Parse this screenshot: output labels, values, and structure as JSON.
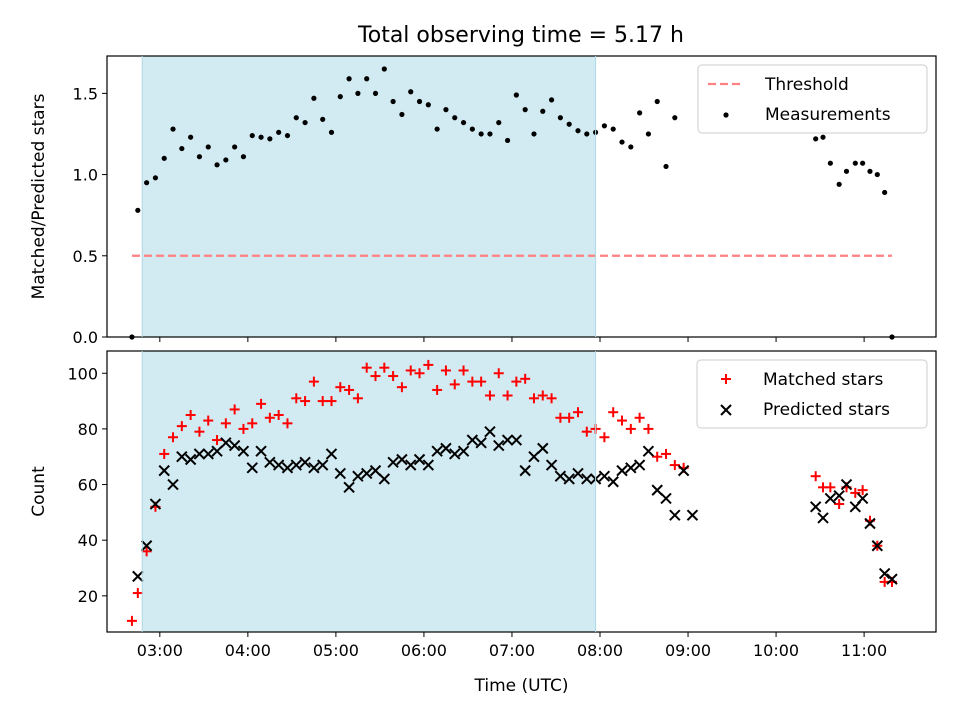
{
  "figure": {
    "title": "Total observing time = 5.17 h"
  },
  "chart_data": [
    {
      "type": "scatter",
      "ylabel": "Matched/Predicted stars",
      "xlabel": "",
      "xlim": [
        "02:24",
        "11:49"
      ],
      "ylim": [
        0,
        1.73
      ],
      "yticks": [
        0.0,
        0.5,
        1.0,
        1.5
      ],
      "ytick_labels": [
        "0.0",
        "0.5",
        "1.0",
        "1.5"
      ],
      "xtick_labels": [],
      "shaded_span": [
        "02:48",
        "07:57"
      ],
      "shaded_color": "#add8e6",
      "legend_position": "upper right",
      "threshold": {
        "name": "Threshold",
        "value": 0.5,
        "x_range": [
          "02:41",
          "11:19"
        ],
        "color": "#ff8080",
        "style": "dashed"
      },
      "series": [
        {
          "name": "Measurements",
          "marker": "dot",
          "color": "#000000",
          "points": [
            [
              "02:41",
              0.0
            ],
            [
              "02:45",
              0.78
            ],
            [
              "02:51",
              0.95
            ],
            [
              "02:57",
              0.98
            ],
            [
              "03:03",
              1.1
            ],
            [
              "03:09",
              1.28
            ],
            [
              "03:15",
              1.16
            ],
            [
              "03:21",
              1.23
            ],
            [
              "03:27",
              1.11
            ],
            [
              "03:33",
              1.17
            ],
            [
              "03:39",
              1.06
            ],
            [
              "03:45",
              1.09
            ],
            [
              "03:51",
              1.17
            ],
            [
              "03:57",
              1.11
            ],
            [
              "04:03",
              1.24
            ],
            [
              "04:09",
              1.23
            ],
            [
              "04:15",
              1.22
            ],
            [
              "04:21",
              1.26
            ],
            [
              "04:27",
              1.24
            ],
            [
              "04:33",
              1.35
            ],
            [
              "04:39",
              1.32
            ],
            [
              "04:45",
              1.47
            ],
            [
              "04:51",
              1.34
            ],
            [
              "04:57",
              1.26
            ],
            [
              "05:03",
              1.48
            ],
            [
              "05:09",
              1.59
            ],
            [
              "05:15",
              1.5
            ],
            [
              "05:21",
              1.59
            ],
            [
              "05:27",
              1.5
            ],
            [
              "05:33",
              1.65
            ],
            [
              "05:39",
              1.45
            ],
            [
              "05:45",
              1.37
            ],
            [
              "05:51",
              1.51
            ],
            [
              "05:57",
              1.45
            ],
            [
              "06:03",
              1.43
            ],
            [
              "06:09",
              1.28
            ],
            [
              "06:15",
              1.4
            ],
            [
              "06:21",
              1.35
            ],
            [
              "06:27",
              1.32
            ],
            [
              "06:33",
              1.28
            ],
            [
              "06:39",
              1.25
            ],
            [
              "06:45",
              1.25
            ],
            [
              "06:51",
              1.32
            ],
            [
              "06:57",
              1.21
            ],
            [
              "07:03",
              1.49
            ],
            [
              "07:09",
              1.4
            ],
            [
              "07:15",
              1.25
            ],
            [
              "07:21",
              1.39
            ],
            [
              "07:27",
              1.46
            ],
            [
              "07:33",
              1.35
            ],
            [
              "07:39",
              1.31
            ],
            [
              "07:45",
              1.27
            ],
            [
              "07:51",
              1.25
            ],
            [
              "07:57",
              1.26
            ],
            [
              "08:03",
              1.3
            ],
            [
              "08:09",
              1.28
            ],
            [
              "08:15",
              1.2
            ],
            [
              "08:21",
              1.17
            ],
            [
              "08:27",
              1.38
            ],
            [
              "08:33",
              1.25
            ],
            [
              "08:39",
              1.45
            ],
            [
              "08:45",
              1.05
            ],
            [
              "08:51",
              1.35
            ],
            [
              "10:27",
              1.22
            ],
            [
              "10:32",
              1.23
            ],
            [
              "10:37",
              1.07
            ],
            [
              "10:43",
              0.94
            ],
            [
              "10:48",
              1.02
            ],
            [
              "10:54",
              1.07
            ],
            [
              "10:59",
              1.07
            ],
            [
              "11:04",
              1.02
            ],
            [
              "11:09",
              1.0
            ],
            [
              "11:14",
              0.89
            ],
            [
              "11:19",
              0.0
            ]
          ]
        }
      ]
    },
    {
      "type": "scatter",
      "ylabel": "Count",
      "xlabel": "Time (UTC)",
      "xlim": [
        "02:24",
        "11:49"
      ],
      "ylim": [
        7,
        108
      ],
      "yticks": [
        20,
        40,
        60,
        80,
        100
      ],
      "ytick_labels": [
        "20",
        "40",
        "60",
        "80",
        "100"
      ],
      "xtick_labels": [
        "03:00",
        "04:00",
        "05:00",
        "06:00",
        "07:00",
        "08:00",
        "09:00",
        "10:00",
        "11:00"
      ],
      "shaded_span": [
        "02:48",
        "07:57"
      ],
      "shaded_color": "#add8e6",
      "legend_position": "upper right",
      "series": [
        {
          "name": "Matched stars",
          "marker": "plus",
          "color": "#ff0000",
          "points": [
            [
              "02:41",
              11
            ],
            [
              "02:45",
              21
            ],
            [
              "02:51",
              36
            ],
            [
              "02:57",
              52
            ],
            [
              "03:03",
              71
            ],
            [
              "03:09",
              77
            ],
            [
              "03:15",
              81
            ],
            [
              "03:21",
              85
            ],
            [
              "03:27",
              79
            ],
            [
              "03:33",
              83
            ],
            [
              "03:39",
              76
            ],
            [
              "03:45",
              82
            ],
            [
              "03:51",
              87
            ],
            [
              "03:57",
              80
            ],
            [
              "04:03",
              82
            ],
            [
              "04:09",
              89
            ],
            [
              "04:15",
              84
            ],
            [
              "04:21",
              85
            ],
            [
              "04:27",
              82
            ],
            [
              "04:33",
              91
            ],
            [
              "04:39",
              90
            ],
            [
              "04:45",
              97
            ],
            [
              "04:51",
              90
            ],
            [
              "04:57",
              90
            ],
            [
              "05:03",
              95
            ],
            [
              "05:09",
              94
            ],
            [
              "05:15",
              91
            ],
            [
              "05:21",
              102
            ],
            [
              "05:27",
              99
            ],
            [
              "05:33",
              102
            ],
            [
              "05:39",
              99
            ],
            [
              "05:45",
              95
            ],
            [
              "05:51",
              101
            ],
            [
              "05:57",
              100
            ],
            [
              "06:03",
              103
            ],
            [
              "06:09",
              94
            ],
            [
              "06:15",
              101
            ],
            [
              "06:21",
              96
            ],
            [
              "06:27",
              101
            ],
            [
              "06:33",
              97
            ],
            [
              "06:39",
              97
            ],
            [
              "06:45",
              92
            ],
            [
              "06:51",
              100
            ],
            [
              "06:57",
              92
            ],
            [
              "07:03",
              97
            ],
            [
              "07:09",
              98
            ],
            [
              "07:15",
              91
            ],
            [
              "07:21",
              92
            ],
            [
              "07:27",
              91
            ],
            [
              "07:33",
              84
            ],
            [
              "07:39",
              84
            ],
            [
              "07:45",
              86
            ],
            [
              "07:51",
              79
            ],
            [
              "07:57",
              80
            ],
            [
              "08:03",
              77
            ],
            [
              "08:09",
              86
            ],
            [
              "08:15",
              83
            ],
            [
              "08:21",
              80
            ],
            [
              "08:27",
              84
            ],
            [
              "08:33",
              80
            ],
            [
              "08:39",
              70
            ],
            [
              "08:45",
              71
            ],
            [
              "08:51",
              67
            ],
            [
              "08:57",
              66
            ],
            [
              "10:27",
              63
            ],
            [
              "10:32",
              59
            ],
            [
              "10:37",
              59
            ],
            [
              "10:43",
              53
            ],
            [
              "10:48",
              59
            ],
            [
              "10:54",
              57
            ],
            [
              "10:59",
              58
            ],
            [
              "11:04",
              47
            ],
            [
              "11:09",
              38
            ],
            [
              "11:14",
              25
            ],
            [
              "11:19",
              25
            ]
          ]
        },
        {
          "name": "Predicted stars",
          "marker": "x",
          "color": "#000000",
          "points": [
            [
              "02:45",
              27
            ],
            [
              "02:51",
              38
            ],
            [
              "02:57",
              53
            ],
            [
              "03:03",
              65
            ],
            [
              "03:09",
              60
            ],
            [
              "03:15",
              70
            ],
            [
              "03:21",
              69
            ],
            [
              "03:27",
              71
            ],
            [
              "03:33",
              71
            ],
            [
              "03:39",
              72
            ],
            [
              "03:45",
              75
            ],
            [
              "03:51",
              74
            ],
            [
              "03:57",
              72
            ],
            [
              "04:03",
              66
            ],
            [
              "04:09",
              72
            ],
            [
              "04:15",
              68
            ],
            [
              "04:21",
              67
            ],
            [
              "04:27",
              66
            ],
            [
              "04:33",
              67
            ],
            [
              "04:39",
              68
            ],
            [
              "04:45",
              66
            ],
            [
              "04:51",
              67
            ],
            [
              "04:57",
              71
            ],
            [
              "05:03",
              64
            ],
            [
              "05:09",
              59
            ],
            [
              "05:15",
              63
            ],
            [
              "05:21",
              64
            ],
            [
              "05:27",
              65
            ],
            [
              "05:33",
              62
            ],
            [
              "05:39",
              68
            ],
            [
              "05:45",
              69
            ],
            [
              "05:51",
              67
            ],
            [
              "05:57",
              69
            ],
            [
              "06:03",
              67
            ],
            [
              "06:09",
              72
            ],
            [
              "06:15",
              73
            ],
            [
              "06:21",
              71
            ],
            [
              "06:27",
              72
            ],
            [
              "06:33",
              76
            ],
            [
              "06:39",
              75
            ],
            [
              "06:45",
              79
            ],
            [
              "06:51",
              74
            ],
            [
              "06:57",
              76
            ],
            [
              "07:03",
              76
            ],
            [
              "07:09",
              65
            ],
            [
              "07:15",
              70
            ],
            [
              "07:21",
              73
            ],
            [
              "07:27",
              67
            ],
            [
              "07:33",
              63
            ],
            [
              "07:39",
              62
            ],
            [
              "07:45",
              64
            ],
            [
              "07:51",
              62
            ],
            [
              "07:57",
              62
            ],
            [
              "08:03",
              63
            ],
            [
              "08:09",
              61
            ],
            [
              "08:15",
              65
            ],
            [
              "08:21",
              66
            ],
            [
              "08:27",
              67
            ],
            [
              "08:33",
              72
            ],
            [
              "08:39",
              58
            ],
            [
              "08:45",
              55
            ],
            [
              "08:51",
              49
            ],
            [
              "08:57",
              65
            ],
            [
              "09:03",
              49
            ],
            [
              "10:27",
              52
            ],
            [
              "10:32",
              48
            ],
            [
              "10:37",
              55
            ],
            [
              "10:43",
              56
            ],
            [
              "10:48",
              60
            ],
            [
              "10:54",
              52
            ],
            [
              "10:59",
              55
            ],
            [
              "11:04",
              46
            ],
            [
              "11:09",
              38
            ],
            [
              "11:14",
              28
            ],
            [
              "11:19",
              26
            ]
          ]
        }
      ]
    }
  ]
}
